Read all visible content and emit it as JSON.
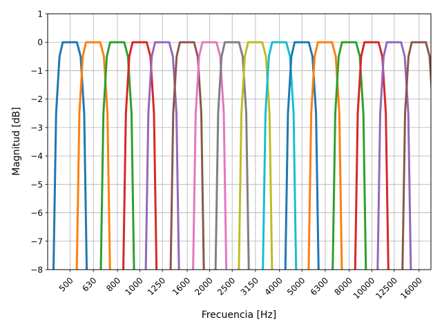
{
  "chart_data": {
    "type": "line",
    "title": "",
    "xlabel": "Frecuencia [Hz]",
    "ylabel": "Magnitud [dB]",
    "x_scale": "log",
    "xlim": [
      400,
      18000
    ],
    "ylim": [
      -8,
      1
    ],
    "grid": true,
    "x_ticks": [
      500,
      630,
      800,
      1000,
      1250,
      1600,
      2000,
      2500,
      3150,
      4000,
      5000,
      6300,
      8000,
      10000,
      12500,
      16000
    ],
    "x_tick_labels": [
      "500",
      "630",
      "800",
      "1000",
      "1250",
      "1600",
      "2000",
      "2500",
      "3150",
      "4000",
      "5000",
      "6300",
      "8000",
      "10000",
      "12500",
      "16000"
    ],
    "y_ticks": [
      1,
      0,
      -1,
      -2,
      -3,
      -4,
      -5,
      -6,
      -7,
      -8
    ],
    "y_tick_labels": [
      "1",
      "0",
      "−1",
      "−2",
      "−3",
      "−4",
      "−5",
      "−6",
      "−7",
      "−8"
    ],
    "series": [
      {
        "color": "#1f77b4",
        "center_hz": 500
      },
      {
        "color": "#ff7f0e",
        "center_hz": 630
      },
      {
        "color": "#2ca02c",
        "center_hz": 800
      },
      {
        "color": "#d62728",
        "center_hz": 1000
      },
      {
        "color": "#9467bd",
        "center_hz": 1250
      },
      {
        "color": "#8c564b",
        "center_hz": 1600
      },
      {
        "color": "#e377c2",
        "center_hz": 2000
      },
      {
        "color": "#7f7f7f",
        "center_hz": 2500
      },
      {
        "color": "#bcbd22",
        "center_hz": 3150
      },
      {
        "color": "#17becf",
        "center_hz": 4000
      },
      {
        "color": "#1f77b4",
        "center_hz": 5000
      },
      {
        "color": "#ff7f0e",
        "center_hz": 6300
      },
      {
        "color": "#2ca02c",
        "center_hz": 8000
      },
      {
        "color": "#d62728",
        "center_hz": 10000
      },
      {
        "color": "#9467bd",
        "center_hz": 12500
      },
      {
        "color": "#8c564b",
        "center_hz": 16000
      }
    ],
    "band_shape": {
      "x_ratio": [
        0.84,
        0.87,
        0.9,
        0.93,
        1.0,
        1.07,
        1.11,
        1.15,
        1.19
      ],
      "y_db": [
        -10,
        -2.5,
        -0.5,
        0,
        0,
        0,
        -0.5,
        -2.5,
        -10
      ]
    }
  }
}
